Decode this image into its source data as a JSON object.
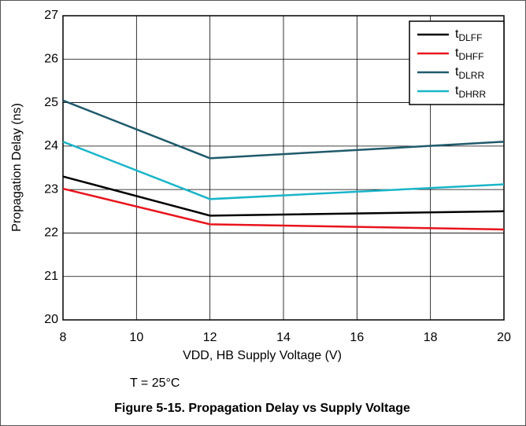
{
  "chart_data": {
    "type": "line",
    "x": [
      8,
      12,
      20
    ],
    "series": [
      {
        "name": "tDLFF",
        "color": "#000000",
        "values": [
          23.3,
          22.4,
          22.5
        ]
      },
      {
        "name": "tDHFF",
        "color": "#e8141c",
        "values": [
          23.02,
          22.2,
          22.08
        ]
      },
      {
        "name": "tDLRR",
        "color": "#1f5a6b",
        "values": [
          25.05,
          23.72,
          24.1
        ]
      },
      {
        "name": "tDHRR",
        "color": "#1ab5c8",
        "values": [
          24.1,
          22.78,
          23.12
        ]
      }
    ],
    "xlim": [
      8,
      20
    ],
    "xticks": [
      8,
      10,
      12,
      14,
      16,
      18,
      20
    ],
    "ylim": [
      20,
      27
    ],
    "yticks": [
      20,
      21,
      22,
      23,
      24,
      25,
      26,
      27
    ],
    "xlabel": "VDD, HB Supply Voltage (V)",
    "ylabel": "Propagation Delay (ns)",
    "annotation": "T = 25°C",
    "caption": "Figure 5-15. Propagation Delay vs Supply Voltage",
    "grid": true,
    "legend": "upper right"
  }
}
